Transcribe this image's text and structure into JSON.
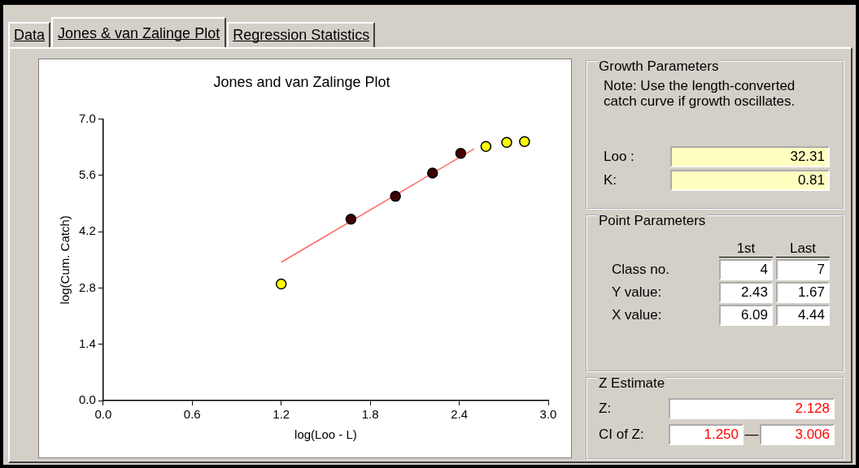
{
  "chart_data": [
    {
      "type": "other",
      "annotations": [
        "Data",
        "Jones & van Zalinge Plot",
        "Regression Statistics"
      ]
    },
    {
      "type": "scatter",
      "title": "Jones and van Zalinge Plot",
      "xlabel": "log(Loo - L)",
      "ylabel": "log(Cum. Catch)",
      "xlim": [
        0,
        3
      ],
      "xticks": [
        {
          "value": 0,
          "label": "0.0"
        },
        0.6,
        1.2,
        1.8,
        2.4,
        {
          "value": 3,
          "label": "3.0"
        }
      ],
      "ylim": [
        0,
        7
      ],
      "yticks": [
        {
          "value": 0,
          "label": "0.0"
        },
        1.4,
        2.8,
        4.2,
        5.6,
        {
          "value": 7,
          "label": "7.0"
        }
      ],
      "grid": false,
      "legend": false,
      "series": [
        {
          "marker": "circle",
          "color": "#ffff00",
          "x": [
            1.2,
            2.58,
            2.72,
            2.84
          ],
          "values": [
            2.9,
            6.32,
            6.42,
            6.44
          ]
        },
        {
          "marker": "circle",
          "color": "#400000",
          "x": [
            1.67,
            1.97,
            2.22,
            2.41
          ],
          "values": [
            4.51,
            5.08,
            5.66,
            6.15
          ]
        },
        {
          "type": "line",
          "marker": "none",
          "color": "#ff6666",
          "x": [
            1.2,
            2.5
          ],
          "values": [
            3.44,
            6.26
          ]
        }
      ]
    },
    {
      "type": "other",
      "title": "Growth Parameters",
      "annotations": [
        "Note: Use the length-converted catch curve if growth oscillates.",
        "Loo :",
        "32.31",
        "K:",
        "0.81"
      ]
    },
    {
      "type": "other",
      "title": "Point Parameters",
      "annotations": [
        "1st",
        "Last",
        "Class no.",
        "4",
        "7",
        "Y value:",
        "2.43",
        "1.67",
        "X value:",
        "6.09",
        "4.44"
      ]
    },
    {
      "type": "other",
      "title": "Z Estimate",
      "annotations": [
        "Z:",
        "2.128",
        "CI of Z:",
        "1.250",
        "—",
        "3.006"
      ]
    }
  ]
}
